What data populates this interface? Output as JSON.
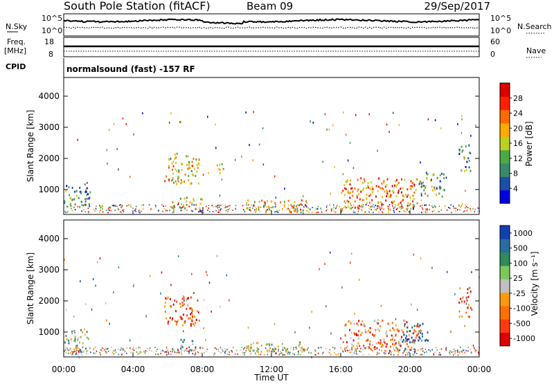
{
  "header": {
    "station": "South Pole Station (fitACF)",
    "beam": "Beam 09",
    "date": "29/Sep/2017"
  },
  "aux": {
    "nsky_label": "N.Sky",
    "nsky_ticks": [
      "10^5",
      "10^0"
    ],
    "nsearch_label": "N.Search",
    "nsearch_ticks": [
      "10^5",
      "10^0"
    ],
    "freq_label": "Freq.",
    "freq_unit": "[MHz]",
    "freq_ticks": [
      "18",
      "8"
    ],
    "nave_label": "Nave",
    "nave_ticks": [
      "60",
      "0"
    ],
    "cpid_label": "CPID",
    "cpid_text": "normalsound (fast) -157 RF"
  },
  "colors": {
    "power": [
      "#0000e0",
      "#1a4fa8",
      "#3a8a6a",
      "#4caa45",
      "#bcd020",
      "#ffaa00",
      "#ff6a00",
      "#ff2000",
      "#dd0000"
    ],
    "velocity": [
      "#1040b0",
      "#2a6ea0",
      "#2e8c5a",
      "#7cc85a",
      "#c0c0c0",
      "#ff9a10",
      "#ff7000",
      "#ff3a10",
      "#e00000"
    ]
  },
  "chart_data": [
    {
      "type": "heatmap",
      "ylabel": "Slant Range [km]",
      "yticks": [
        "1000",
        "2000",
        "3000",
        "4000"
      ],
      "ylim": [
        200,
        4600
      ],
      "xlim": [
        "00:00",
        "24:00"
      ],
      "colorbar": {
        "label": "Power [dB]",
        "ticks": [
          "4",
          "8",
          "12",
          "16",
          "20",
          "24",
          "28"
        ],
        "range": [
          0,
          30
        ]
      },
      "regions": [
        {
          "t": [
            0.0,
            1.5
          ],
          "r": [
            400,
            1200
          ],
          "level": 0.3
        },
        {
          "t": [
            5.8,
            7.8
          ],
          "r": [
            1200,
            2200
          ],
          "level": 0.55
        },
        {
          "t": [
            6.2,
            8.0
          ],
          "r": [
            400,
            800
          ],
          "level": 0.5
        },
        {
          "t": [
            8.8,
            9.2
          ],
          "r": [
            1500,
            1900
          ],
          "level": 0.45
        },
        {
          "t": [
            10.5,
            14.0
          ],
          "r": [
            300,
            700
          ],
          "level": 0.6
        },
        {
          "t": [
            16.0,
            20.5
          ],
          "r": [
            400,
            1400
          ],
          "level": 0.7
        },
        {
          "t": [
            20.5,
            22.0
          ],
          "r": [
            800,
            1600
          ],
          "level": 0.35
        },
        {
          "t": [
            22.8,
            23.5
          ],
          "r": [
            1600,
            2500
          ],
          "level": 0.3
        }
      ]
    },
    {
      "type": "heatmap",
      "ylabel": "Slant Range [km]",
      "yticks": [
        "1000",
        "2000",
        "3000",
        "4000"
      ],
      "ylim": [
        200,
        4600
      ],
      "xlim": [
        "00:00",
        "24:00"
      ],
      "xlabel": "Time UT",
      "xticks": [
        "00:00",
        "04:00",
        "08:00",
        "12:00",
        "16:00",
        "20:00",
        "00:00"
      ],
      "colorbar": {
        "label": "Velocity [m s⁻¹]",
        "ticks": [
          "1000",
          "500",
          "100",
          "25",
          "-25",
          "-100",
          "-500",
          "-1000"
        ],
        "range": [
          -1000,
          1000
        ]
      },
      "regions": [
        {
          "t": [
            0.0,
            1.5
          ],
          "r": [
            400,
            1100
          ],
          "level": 0.4
        },
        {
          "t": [
            5.8,
            7.8
          ],
          "r": [
            1200,
            2200
          ],
          "level": 0.8
        },
        {
          "t": [
            6.5,
            8.0
          ],
          "r": [
            400,
            800
          ],
          "level": 0.3
        },
        {
          "t": [
            10.5,
            14.0
          ],
          "r": [
            300,
            700
          ],
          "level": 0.45
        },
        {
          "t": [
            16.0,
            20.5
          ],
          "r": [
            400,
            1400
          ],
          "level": 0.7
        },
        {
          "t": [
            19.5,
            21.0
          ],
          "r": [
            700,
            1300
          ],
          "level": 0.1
        },
        {
          "t": [
            22.8,
            23.5
          ],
          "r": [
            1500,
            2500
          ],
          "level": 0.75
        }
      ]
    }
  ]
}
